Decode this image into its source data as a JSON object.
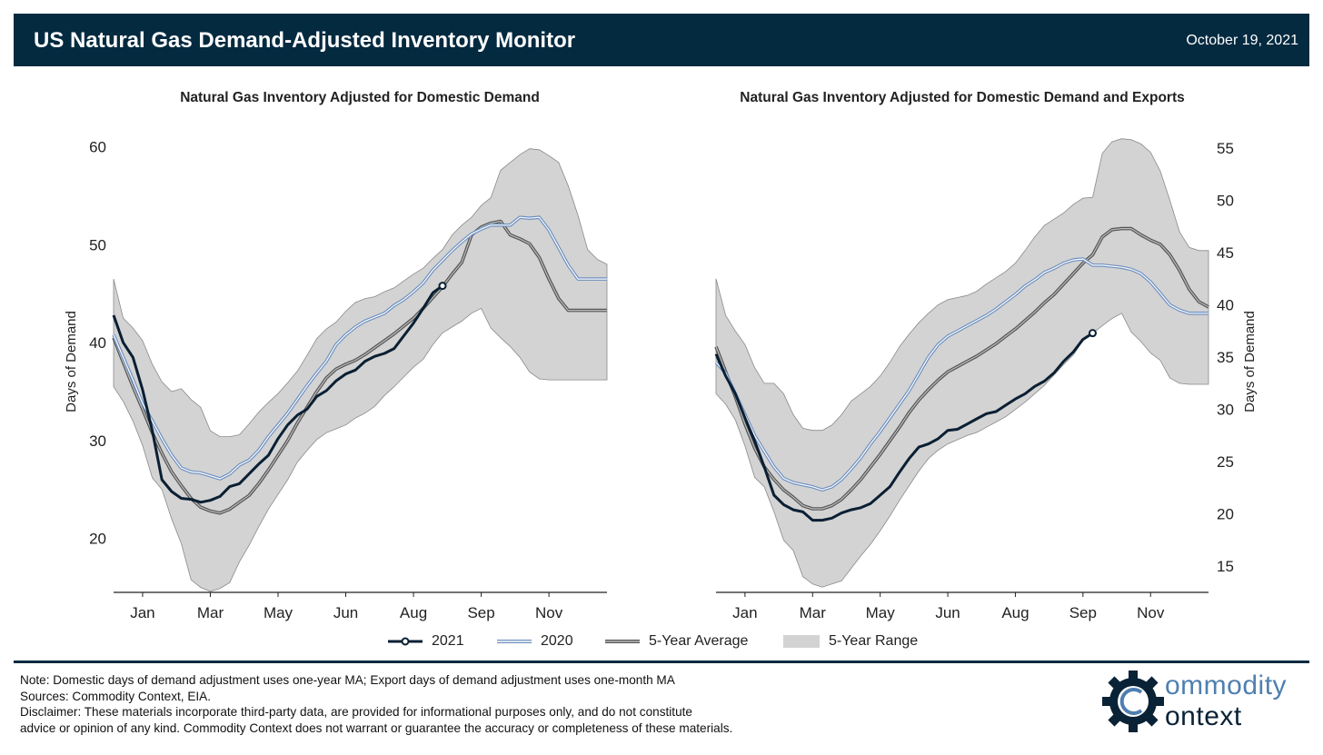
{
  "header": {
    "title": "US Natural Gas Demand-Adjusted Inventory Monitor",
    "date": "October 19, 2021"
  },
  "colors": {
    "header_bg": "#042a40",
    "series_2021": "#0a1f33",
    "series_2020": "#6d8fbf",
    "series_avg": "#666666",
    "range_fill": "#d3d3d3"
  },
  "legend": {
    "items": [
      {
        "label": "2021"
      },
      {
        "label": "2020"
      },
      {
        "label": "5-Year Average"
      },
      {
        "label": "5-Year Range"
      }
    ]
  },
  "chart_data": [
    {
      "type": "line",
      "title": "Natural Gas Inventory Adjusted for Domestic Demand",
      "ylabel": "Days of Demand",
      "ylim": [
        14.5,
        62
      ],
      "yticks": [
        20,
        30,
        40,
        50,
        60
      ],
      "xlim": [
        0,
        51
      ],
      "xticks": [
        {
          "label": "Jan",
          "pos": 3
        },
        {
          "label": "Mar",
          "pos": 10
        },
        {
          "label": "May",
          "pos": 17
        },
        {
          "label": "Jun",
          "pos": 24
        },
        {
          "label": "Aug",
          "pos": 31
        },
        {
          "label": "Sep",
          "pos": 38
        },
        {
          "label": "Nov",
          "pos": 45
        }
      ],
      "range_upper": [
        46.5,
        42.5,
        41.5,
        40.2,
        37.8,
        36,
        35,
        35.3,
        34.2,
        33.4,
        31,
        30.4,
        30.4,
        30.6,
        31.7,
        32.9,
        33.9,
        34.8,
        35.9,
        37.1,
        38.7,
        40.4,
        41.4,
        42.1,
        43.2,
        44.1,
        44.5,
        44.7,
        45.2,
        45.6,
        46.3,
        47,
        47.6,
        48.6,
        49.5,
        51,
        52,
        52.8,
        54,
        54.8,
        57.6,
        58.4,
        59.2,
        59.8,
        59.7,
        59.1,
        58.4,
        56,
        53,
        49.5,
        48.5,
        48
      ],
      "range_lower": [
        35.5,
        34,
        32,
        29.5,
        26.2,
        25,
        22,
        19.5,
        15.8,
        15,
        14.6,
        14.9,
        15.5,
        17.6,
        19.3,
        21.2,
        23,
        24.5,
        26,
        27.8,
        29,
        30.1,
        30.8,
        31.2,
        31.6,
        32.3,
        32.8,
        33.5,
        34.6,
        35.5,
        36.5,
        37.5,
        38.3,
        39.8,
        41,
        41.6,
        42.2,
        43,
        43.5,
        41.5,
        40.5,
        39.6,
        38.5,
        37,
        36.3,
        36.2,
        36.2,
        36.2,
        36.2,
        36.2,
        36.2,
        36.2
      ],
      "series": [
        {
          "name": "2021",
          "values": [
            42.8,
            40,
            38.5,
            35.2,
            31,
            26,
            24.8,
            24.1,
            24,
            23.7,
            23.9,
            24.3,
            25.3,
            25.6,
            26.6,
            27.6,
            28.5,
            30.2,
            31.6,
            32.6,
            33.2,
            34.5,
            35.1,
            36.1,
            36.8,
            37.2,
            38.1,
            38.6,
            38.9,
            39.4,
            40.7,
            42,
            43.5,
            45.1,
            45.8
          ]
        },
        {
          "name": "2020",
          "values": [
            40.8,
            38.5,
            36.2,
            33.8,
            32,
            30.2,
            28.5,
            27.2,
            26.8,
            26.7,
            26.4,
            26.1,
            26.6,
            27.5,
            28,
            29,
            30.4,
            31.6,
            32.8,
            34.2,
            35.6,
            36.9,
            38.1,
            39.8,
            40.8,
            41.6,
            42.2,
            42.6,
            43,
            43.8,
            44.4,
            45.2,
            46.1,
            47.4,
            48.4,
            49.4,
            50.3,
            51.1,
            51.6,
            52,
            52,
            52,
            52.8,
            52.7,
            52.8,
            51.5,
            49.7,
            47.9,
            46.5,
            46.5,
            46.5,
            46.5
          ]
        },
        {
          "name": "5-Year Average",
          "values": [
            40.5,
            38,
            35.5,
            33.2,
            30.8,
            28.7,
            26.8,
            25.4,
            24.1,
            23.2,
            22.8,
            22.6,
            23,
            23.7,
            24.4,
            25.6,
            27,
            28.5,
            30,
            31.8,
            33.4,
            35,
            36.4,
            37.3,
            37.8,
            38.2,
            38.8,
            39.5,
            40.2,
            40.9,
            41.7,
            42.5,
            43.5,
            44.6,
            45.7,
            47,
            48.2,
            51,
            51.8,
            52.2,
            52.4,
            51,
            50.6,
            50.1,
            48.7,
            46.5,
            44.5,
            43.3,
            43.3,
            43.3,
            43.3,
            43.3
          ]
        }
      ]
    },
    {
      "type": "line",
      "title": "Natural Gas Inventory Adjusted for Domestic Demand and Exports",
      "ylabel": "Days of Demand",
      "ylim": [
        12.5,
        57
      ],
      "yticks": [
        15,
        20,
        25,
        30,
        35,
        40,
        45,
        50,
        55
      ],
      "xlim": [
        0,
        51
      ],
      "xticks": [
        {
          "label": "Jan",
          "pos": 3
        },
        {
          "label": "Mar",
          "pos": 10
        },
        {
          "label": "May",
          "pos": 17
        },
        {
          "label": "Jun",
          "pos": 24
        },
        {
          "label": "Aug",
          "pos": 31
        },
        {
          "label": "Sep",
          "pos": 38
        },
        {
          "label": "Nov",
          "pos": 45
        }
      ],
      "range_upper": [
        42.5,
        39,
        37.5,
        36.2,
        34,
        32.5,
        32.5,
        31.5,
        29.5,
        28.2,
        28,
        28,
        28.5,
        29.5,
        30.8,
        31.5,
        32.2,
        33.2,
        34.5,
        36,
        37.2,
        38.3,
        39.2,
        40,
        40.5,
        40.7,
        40.9,
        41.3,
        42,
        42.6,
        43.2,
        44,
        45.2,
        46.5,
        47.6,
        48.2,
        48.8,
        49.6,
        50.2,
        50.3,
        54.5,
        55.6,
        55.9,
        55.8,
        55.4,
        54.6,
        52.8,
        50,
        47,
        45.5,
        45.2,
        45.2
      ],
      "range_lower": [
        31.5,
        30.5,
        29,
        26.5,
        23.5,
        22.6,
        20.2,
        17.5,
        16.5,
        14,
        13.3,
        13,
        13.3,
        13.6,
        14.8,
        16,
        17.1,
        18.4,
        19.8,
        21.3,
        22.7,
        24.1,
        25.3,
        26.1,
        26.7,
        27.1,
        27.5,
        27.8,
        28.3,
        28.8,
        29.3,
        30,
        30.7,
        31.5,
        32.3,
        33.3,
        34.3,
        35.2,
        36.6,
        37.3,
        38,
        38.7,
        39.2,
        37.4,
        36.5,
        35.4,
        34.7,
        33,
        32.5,
        32.4,
        32.4,
        32.4
      ],
      "series": [
        {
          "name": "2021",
          "values": [
            35.3,
            33.2,
            31.5,
            29.2,
            27,
            24.5,
            21.8,
            20.9,
            20.4,
            20.2,
            19.4,
            19.4,
            19.6,
            20.1,
            20.4,
            20.6,
            21,
            21.8,
            22.6,
            24,
            25.3,
            26.4,
            26.7,
            27.2,
            28,
            28.1,
            28.6,
            29.1,
            29.6,
            29.8,
            30.4,
            31,
            31.5,
            32.2,
            32.7,
            33.5,
            34.6,
            35.5,
            36.7,
            37.3
          ]
        },
        {
          "name": "2020",
          "values": [
            34.5,
            33.5,
            31.5,
            29.5,
            27.5,
            26,
            24.5,
            23.4,
            23,
            22.8,
            22.6,
            22.3,
            22.6,
            23.3,
            24.3,
            25.4,
            26.7,
            27.9,
            29.2,
            30.5,
            31.8,
            33.4,
            35,
            36.2,
            37,
            37.5,
            38,
            38.5,
            39,
            39.6,
            40.3,
            41,
            41.8,
            42.4,
            43.1,
            43.5,
            44,
            44.3,
            44.4,
            43.8,
            43.8,
            43.7,
            43.6,
            43.4,
            43,
            42.2,
            41.1,
            40,
            39.5,
            39.2,
            39.2,
            39.2
          ]
        },
        {
          "name": "5-Year Average",
          "values": [
            36,
            33.6,
            31.2,
            28.6,
            26.3,
            24.5,
            23.3,
            22.3,
            21.6,
            20.8,
            20.5,
            20.5,
            20.8,
            21.4,
            22.3,
            23.3,
            24.5,
            25.7,
            27,
            28.3,
            29.7,
            30.9,
            31.9,
            32.8,
            33.6,
            34.1,
            34.6,
            35.1,
            35.7,
            36.3,
            37,
            37.7,
            38.5,
            39.3,
            40.2,
            41,
            42,
            43,
            44,
            44.8,
            46.5,
            47.2,
            47.3,
            47.3,
            46.7,
            46.2,
            45.8,
            44.8,
            43.3,
            41.5,
            40.3,
            39.8
          ]
        }
      ]
    }
  ],
  "notes": {
    "line1": "Note: Domestic days of demand adjustment uses one-year MA; Export days of demand adjustment uses one-month MA",
    "line2": "Sources: Commodity Context, EIA.",
    "line3": "Disclaimer: These materials incorporate third-party data, are provided for informational purposes only, and do not constitute\nadvice or opinion of any kind. Commodity Context does not warrant or guarantee the accuracy or completeness of these materials."
  },
  "logo": {
    "word1": "ommodity",
    "word2": "ontext"
  }
}
